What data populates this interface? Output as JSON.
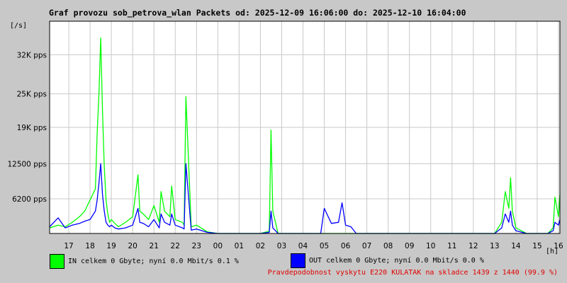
{
  "title": "Graf provozu sob_petrova_wlan Packets od: 2025-12-09 16:06:00 do: 2025-12-10 16:04:00",
  "y_unit": "[/s]",
  "x_unit": "[h]",
  "legend": {
    "in_label": "IN celkem 0 Gbyte; nyní   0.0 Mbit/s 0.1 %",
    "out_label": "OUT celkem 0 Gbyte; nyní   0.0 Mbit/s 0.0 %",
    "in_color": "#00ff00",
    "out_color": "#0000ff"
  },
  "availability_note": "Pravdepodobnost vyskytu E220 KULATAK na skladce 1439 z 1440 (99.9 %)",
  "colors": {
    "background": "#c8c8c8",
    "plot_bg": "#ffffff",
    "grid": "#c8c8c8",
    "note": "#e00000"
  },
  "chart_data": {
    "type": "area",
    "title": "Graf provozu sob_petrova_wlan Packets od: 2025-12-09 16:06:00 do: 2025-12-10 16:04:00",
    "xlabel": "[h]",
    "ylabel": "[/s]",
    "x_ticks": [
      "17",
      "18",
      "19",
      "20",
      "21",
      "22",
      "23",
      "00",
      "01",
      "02",
      "03",
      "04",
      "05",
      "06",
      "07",
      "08",
      "09",
      "10",
      "11",
      "12",
      "13",
      "14",
      "15",
      "16"
    ],
    "y_ticks": [
      {
        "value": 6200,
        "label": "6200 pps"
      },
      {
        "value": 12500,
        "label": "12500 pps"
      },
      {
        "value": 19000,
        "label": "19K pps"
      },
      {
        "value": 25000,
        "label": "25K pps"
      },
      {
        "value": 32000,
        "label": "32K pps"
      }
    ],
    "ylim": [
      0,
      38000
    ],
    "xlim": [
      "2025-12-09 16:06",
      "2025-12-10 16:04"
    ],
    "grid": true,
    "series": [
      {
        "name": "IN",
        "color": "#00ff00",
        "x": [
          "16:06",
          "16:30",
          "16:50",
          "17:10",
          "17:30",
          "17:45",
          "18:00",
          "18:15",
          "18:20",
          "18:25",
          "18:30",
          "18:35",
          "18:40",
          "18:45",
          "18:50",
          "18:55",
          "19:00",
          "19:10",
          "19:20",
          "19:40",
          "20:00",
          "20:15",
          "20:20",
          "20:30",
          "20:45",
          "21:00",
          "21:15",
          "21:20",
          "21:30",
          "21:45",
          "21:50",
          "22:00",
          "22:20",
          "22:25",
          "22:30",
          "22:45",
          "23:00",
          "23:30",
          "00:00",
          "01:00",
          "02:00",
          "02:25",
          "02:30",
          "02:35",
          "02:50",
          "03:00",
          "04:00",
          "05:00",
          "06:00",
          "06:30",
          "07:00",
          "08:00",
          "09:00",
          "10:00",
          "11:00",
          "12:00",
          "13:00",
          "13:20",
          "13:30",
          "13:40",
          "13:45",
          "13:50",
          "14:00",
          "14:30",
          "15:00",
          "15:30",
          "15:45",
          "15:50",
          "16:00",
          "16:04"
        ],
        "values": [
          1000,
          1500,
          1200,
          2000,
          3000,
          4000,
          6000,
          8000,
          18000,
          25000,
          35000,
          22000,
          12000,
          6000,
          3500,
          2000,
          2500,
          1800,
          1200,
          2000,
          3000,
          10500,
          4000,
          3500,
          2500,
          5000,
          2000,
          7500,
          4000,
          3000,
          8500,
          2500,
          2000,
          1500,
          24500,
          1200,
          1500,
          300,
          0,
          0,
          0,
          400,
          18500,
          4000,
          0,
          0,
          0,
          0,
          0,
          0,
          0,
          0,
          0,
          0,
          0,
          0,
          0,
          2000,
          7500,
          4500,
          10000,
          4000,
          1000,
          0,
          0,
          0,
          1000,
          6500,
          3000,
          7000
        ]
      },
      {
        "name": "OUT",
        "color": "#0000ff",
        "x": [
          "16:06",
          "16:30",
          "16:50",
          "17:10",
          "17:30",
          "17:45",
          "18:00",
          "18:15",
          "18:20",
          "18:25",
          "18:30",
          "18:35",
          "18:40",
          "18:45",
          "18:50",
          "18:55",
          "19:00",
          "19:10",
          "19:20",
          "19:40",
          "20:00",
          "20:15",
          "20:20",
          "20:30",
          "20:45",
          "21:00",
          "21:15",
          "21:20",
          "21:30",
          "21:45",
          "21:50",
          "22:00",
          "22:20",
          "22:25",
          "22:30",
          "22:45",
          "23:00",
          "23:30",
          "00:00",
          "01:00",
          "02:00",
          "02:25",
          "02:30",
          "02:35",
          "02:50",
          "03:00",
          "04:00",
          "04:50",
          "05:00",
          "05:20",
          "05:40",
          "05:50",
          "06:00",
          "06:15",
          "06:30",
          "07:00",
          "08:00",
          "09:00",
          "10:00",
          "11:00",
          "12:00",
          "13:00",
          "13:20",
          "13:30",
          "13:40",
          "13:45",
          "13:50",
          "14:00",
          "14:30",
          "15:00",
          "15:30",
          "15:45",
          "15:50",
          "16:00",
          "16:04"
        ],
        "values": [
          1200,
          2800,
          1000,
          1500,
          1800,
          2200,
          2500,
          4000,
          6000,
          9000,
          12500,
          7000,
          4000,
          2000,
          1500,
          1200,
          1500,
          1000,
          800,
          1000,
          1500,
          4500,
          2000,
          1800,
          1200,
          2500,
          1000,
          3500,
          2000,
          1500,
          3500,
          1500,
          1000,
          800,
          12500,
          600,
          800,
          200,
          0,
          0,
          0,
          200,
          4000,
          1000,
          0,
          0,
          0,
          0,
          4500,
          1800,
          2000,
          5500,
          1500,
          1200,
          0,
          0,
          0,
          0,
          0,
          0,
          0,
          0,
          1000,
          3500,
          2000,
          4000,
          1500,
          500,
          0,
          0,
          0,
          500,
          2000,
          1500,
          2500
        ]
      }
    ]
  }
}
